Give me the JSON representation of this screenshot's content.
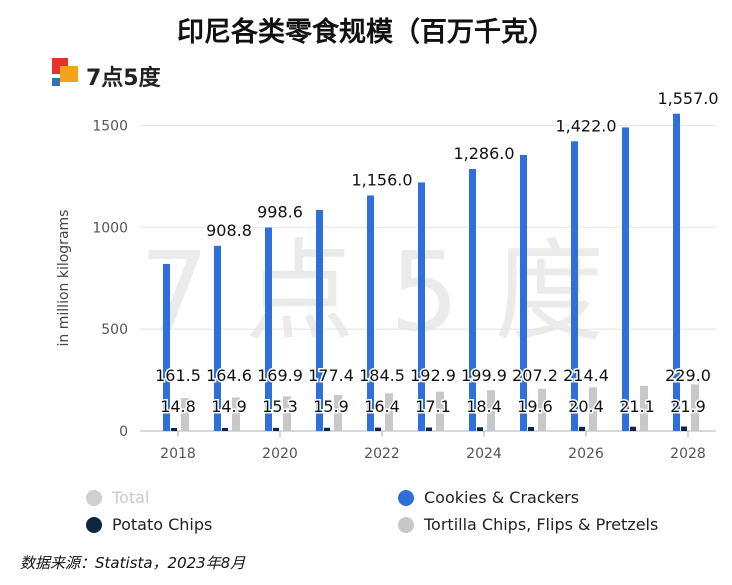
{
  "title": "印尼各类零食规模（百万千克）",
  "brand": {
    "name": "7点5度",
    "watermark": "7 点 5 度"
  },
  "source": "数据来源：Statista，2023年8月",
  "chart_data": {
    "type": "bar",
    "ylabel": "in million kilograms",
    "ylim": [
      0,
      1600
    ],
    "yticks": [
      0,
      500,
      1000,
      1500
    ],
    "grid": true,
    "legend_position": "bottom",
    "categories": [
      "2018",
      "2019",
      "2020",
      "2021",
      "2022",
      "2023",
      "2024",
      "2025",
      "2026",
      "2027",
      "2028"
    ],
    "xtick_labels": [
      "2018",
      "2020",
      "2022",
      "2024",
      "2026",
      "2028"
    ],
    "series": [
      {
        "name": "Cookies & Crackers",
        "color": "#2e6fdc",
        "values": [
          820,
          908.8,
          998.6,
          1085,
          1156.0,
          1220,
          1286.0,
          1355,
          1422.0,
          1490,
          1557.0
        ],
        "labels": [
          null,
          "908.8",
          "998.6",
          null,
          "1,156.0",
          null,
          "1,286.0",
          null,
          "1,422.0",
          null,
          "1,557.0"
        ]
      },
      {
        "name": "Potato Chips",
        "color": "#0f2540",
        "values": [
          14.8,
          14.9,
          15.3,
          15.9,
          16.4,
          17.1,
          18.4,
          19.6,
          20.4,
          21.1,
          21.9
        ],
        "labels": [
          "14.8",
          "14.9",
          "15.3",
          "15.9",
          "16.4",
          "17.1",
          "18.4",
          "19.6",
          "20.4",
          "21.1",
          "21.9"
        ]
      },
      {
        "name": "Tortilla Chips, Flips & Pretzels",
        "color": "#c8c8c8",
        "values": [
          161.5,
          164.6,
          169.9,
          177.4,
          184.5,
          192.9,
          199.9,
          207.2,
          214.4,
          222,
          229.0
        ],
        "labels": [
          "161.5",
          "164.6",
          "169.9",
          "177.4",
          "184.5",
          "192.9",
          "199.9",
          "207.2",
          "214.4",
          null,
          "229.0"
        ]
      }
    ],
    "legend": [
      {
        "name": "Total",
        "color": "#d0d0d0",
        "hidden": true
      },
      {
        "name": "Cookies & Crackers",
        "color": "#2e6fdc",
        "hidden": false
      },
      {
        "name": "Potato Chips",
        "color": "#0f2540",
        "hidden": false
      },
      {
        "name": "Tortilla Chips, Flips & Pretzels",
        "color": "#c8c8c8",
        "hidden": false
      }
    ]
  }
}
